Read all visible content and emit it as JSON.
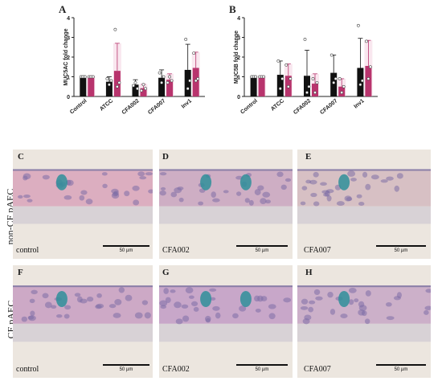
{
  "chart_data": [
    {
      "type": "bar",
      "panel": "A",
      "ylabel": "MUC5AC fold change",
      "ylim": [
        0,
        4
      ],
      "yticks": [
        "0",
        "1",
        "2",
        "3",
        "4"
      ],
      "categories": [
        "Control",
        "ATCC",
        "CFA002",
        "CFA007",
        "Inv1"
      ],
      "series": [
        {
          "color": "#111111",
          "values": [
            1.0,
            0.75,
            0.6,
            0.95,
            1.35
          ],
          "errors": [
            0.05,
            0.25,
            0.25,
            0.4,
            1.3
          ]
        },
        {
          "color": "#b8346d",
          "values": [
            1.0,
            1.3,
            0.42,
            0.85,
            1.45
          ],
          "errors": [
            0.05,
            1.4,
            0.2,
            0.3,
            0.8
          ]
        }
      ],
      "points": [
        [
          [
            1,
            1,
            1
          ],
          [
            0.9,
            0.6,
            0.8
          ],
          [
            0.55,
            0.7,
            0.4
          ],
          [
            1.2,
            0.7,
            1.0
          ],
          [
            2.9,
            0.4,
            0.8
          ]
        ],
        [
          [
            1,
            1,
            1
          ],
          [
            3.4,
            0.5,
            0.7
          ],
          [
            0.3,
            0.6,
            0.4
          ],
          [
            0.7,
            1.0,
            0.8
          ],
          [
            2.2,
            0.8,
            0.9
          ]
        ]
      ]
    },
    {
      "type": "bar",
      "panel": "B",
      "ylabel": "MUC5B fold change",
      "ylim": [
        0,
        4
      ],
      "yticks": [
        "0",
        "1",
        "2",
        "3",
        "4"
      ],
      "categories": [
        "Control",
        "ATCC",
        "CFA002",
        "CFA007",
        "Inv1"
      ],
      "series": [
        {
          "color": "#111111",
          "values": [
            1.0,
            1.1,
            1.05,
            1.2,
            1.45
          ],
          "errors": [
            0.05,
            0.7,
            1.3,
            0.9,
            1.5
          ]
        },
        {
          "color": "#b8346d",
          "values": [
            1.0,
            1.05,
            0.65,
            0.5,
            1.55
          ],
          "errors": [
            0.05,
            0.6,
            0.5,
            0.4,
            1.3
          ]
        }
      ],
      "points": [
        [
          [
            1,
            1,
            1
          ],
          [
            1.8,
            0.4,
            0.9
          ],
          [
            2.9,
            0.2,
            0.5
          ],
          [
            2.1,
            0.7,
            0.9
          ],
          [
            3.6,
            0.6,
            0.8
          ]
        ],
        [
          [
            1,
            1,
            1
          ],
          [
            1.6,
            0.5,
            0.9
          ],
          [
            0.9,
            0.2,
            0.7
          ],
          [
            0.9,
            0.2,
            0.5
          ],
          [
            2.8,
            0.9,
            1.5
          ]
        ]
      ]
    }
  ],
  "micrographs": {
    "row_labels": [
      "non-CF pAEC",
      "CF pAEC"
    ],
    "scale_text": "50 µm",
    "panels": [
      {
        "letter": "C",
        "caption": "control",
        "pink": "#d9a3bb",
        "blue_spots": 1
      },
      {
        "letter": "D",
        "caption": "CFA002",
        "pink": "#c9a3c0",
        "blue_spots": 2
      },
      {
        "letter": "E",
        "caption": "CFA007",
        "pink": "#d4b8c0",
        "blue_spots": 1
      },
      {
        "letter": "F",
        "caption": "control",
        "pink": "#c89dc2",
        "blue_spots": 1
      },
      {
        "letter": "G",
        "caption": "CFA002",
        "pink": "#c29bc5",
        "blue_spots": 2
      },
      {
        "letter": "H",
        "caption": "CFA007",
        "pink": "#c7a6c6",
        "blue_spots": 1
      }
    ]
  }
}
